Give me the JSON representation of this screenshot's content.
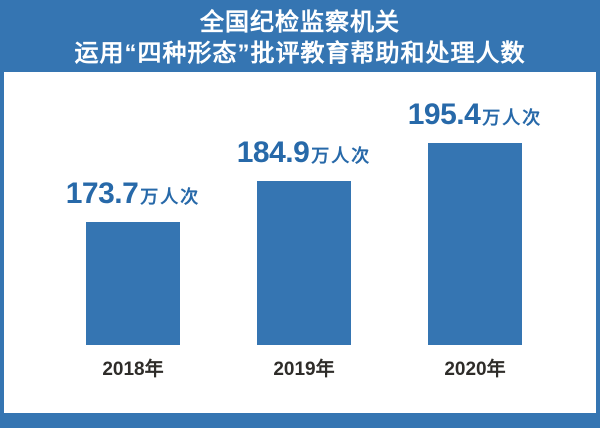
{
  "title": {
    "line1": "全国纪检监察机关",
    "line2": "运用“四种形态”批评教育帮助和处理人数"
  },
  "chart_data": {
    "type": "bar",
    "title": "全国纪检监察机关运用“四种形态”批评教育帮助和处理人数",
    "categories": [
      "2018年",
      "2019年",
      "2020年"
    ],
    "values": [
      173.7,
      184.9,
      195.4
    ],
    "unit": "万人次",
    "xlabel": "",
    "ylabel": "",
    "ylim": [
      140,
      200
    ],
    "grid": false,
    "legend": "none",
    "bar_value_labels": [
      "173.7万人次",
      "184.9万人次",
      "195.4万人次"
    ]
  },
  "colors": {
    "background": "#3575b2",
    "bar": "#3575b2",
    "panel": "#ffffff",
    "value_label": "#2769a9",
    "category_label": "#2e2c29",
    "title_text": "#ffffff"
  }
}
